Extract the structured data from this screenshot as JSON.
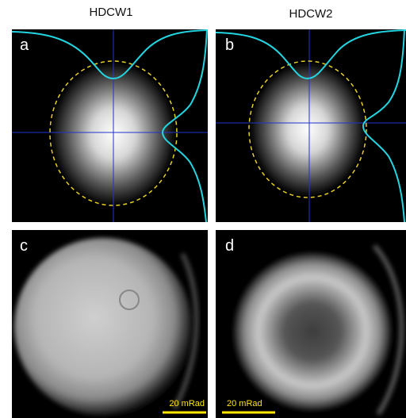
{
  "columns": [
    "HDCW1",
    "HDCW2"
  ],
  "panels": [
    {
      "label": "a"
    },
    {
      "label": "b"
    },
    {
      "label": "c",
      "scale_bar": "20 mRad"
    },
    {
      "label": "d",
      "scale_bar": "20 mRad"
    }
  ]
}
